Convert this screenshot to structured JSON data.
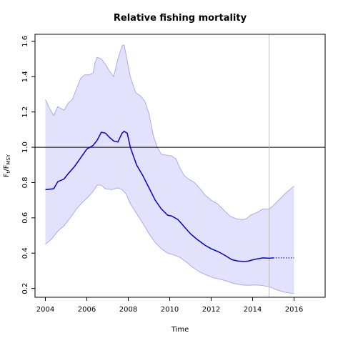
{
  "chart_data": {
    "type": "line",
    "title": "Relative fishing mortality",
    "xlabel": "Time",
    "ylabel_main": "F",
    "ylabel_sub1": "t",
    "ylabel_sep": "/F",
    "ylabel_sub2": "MSY",
    "xlim": [
      2003.5,
      2017.5
    ],
    "ylim": [
      0.15,
      1.64
    ],
    "x_ticks": [
      2004,
      2006,
      2008,
      2010,
      2012,
      2014,
      2016
    ],
    "x_tick_labels": [
      "2004",
      "2006",
      "2008",
      "2010",
      "2012",
      "2014",
      "2016"
    ],
    "y_ticks": [
      0.2,
      0.4,
      0.6,
      0.8,
      1.0,
      1.2,
      1.4,
      1.6
    ],
    "y_tick_labels": [
      "0.2",
      "0.4",
      "0.6",
      "0.8",
      "1.0",
      "1.2",
      "1.4",
      "1.6"
    ],
    "reference_line_y": 1.0,
    "vertical_line_x": 2014.8,
    "grid": false,
    "colors": {
      "median": "#0000dd",
      "band_fill": "#e2e2fd",
      "band_edge": "#aaaaf0",
      "reference": "#000000",
      "vertical": "#bbbbbb"
    },
    "series": [
      {
        "role": "median",
        "x": [
          2004.0,
          2004.4,
          2004.6,
          2004.9,
          2005.1,
          2005.4,
          2005.7,
          2006.0,
          2006.3,
          2006.5,
          2006.7,
          2006.9,
          2007.1,
          2007.3,
          2007.5,
          2007.7,
          2007.8,
          2007.95,
          2008.1,
          2008.4,
          2008.7,
          2009.0,
          2009.3,
          2009.6,
          2009.9,
          2010.1,
          2010.4,
          2010.7,
          2011.0,
          2011.3,
          2011.7,
          2012.0,
          2012.4,
          2012.7,
          2013.0,
          2013.3,
          2013.6,
          2013.8,
          2014.0,
          2014.2,
          2014.5,
          2014.8,
          2015.0
        ],
        "y": [
          0.76,
          0.765,
          0.805,
          0.82,
          0.85,
          0.89,
          0.94,
          0.99,
          1.01,
          1.04,
          1.085,
          1.08,
          1.055,
          1.035,
          1.03,
          1.08,
          1.09,
          1.08,
          1.0,
          0.9,
          0.84,
          0.77,
          0.7,
          0.65,
          0.615,
          0.61,
          0.59,
          0.55,
          0.51,
          0.48,
          0.445,
          0.425,
          0.405,
          0.385,
          0.363,
          0.355,
          0.353,
          0.355,
          0.362,
          0.367,
          0.373,
          0.371,
          0.373
        ]
      },
      {
        "role": "projection",
        "x": [
          2015.0,
          2016.0
        ],
        "y": [
          0.373,
          0.373
        ]
      },
      {
        "role": "band_upper",
        "x": [
          2004.0,
          2004.2,
          2004.4,
          2004.6,
          2004.9,
          2005.1,
          2005.3,
          2005.5,
          2005.7,
          2005.9,
          2006.1,
          2006.3,
          2006.4,
          2006.5,
          2006.7,
          2006.9,
          2007.1,
          2007.3,
          2007.5,
          2007.7,
          2007.8,
          2007.9,
          2008.1,
          2008.35,
          2008.6,
          2008.8,
          2009.0,
          2009.2,
          2009.4,
          2009.6,
          2009.9,
          2010.1,
          2010.3,
          2010.5,
          2010.7,
          2010.9,
          2011.2,
          2011.5,
          2011.7,
          2012.0,
          2012.3,
          2012.6,
          2012.9,
          2013.2,
          2013.5,
          2013.7,
          2013.9,
          2014.2,
          2014.5,
          2014.8,
          2015.0,
          2015.3,
          2015.6,
          2016.0
        ],
        "y": [
          1.27,
          1.22,
          1.18,
          1.23,
          1.21,
          1.25,
          1.27,
          1.33,
          1.39,
          1.41,
          1.41,
          1.42,
          1.48,
          1.51,
          1.5,
          1.47,
          1.43,
          1.4,
          1.5,
          1.575,
          1.58,
          1.52,
          1.4,
          1.31,
          1.29,
          1.26,
          1.19,
          1.07,
          1.0,
          0.96,
          0.955,
          0.95,
          0.935,
          0.88,
          0.84,
          0.82,
          0.8,
          0.76,
          0.73,
          0.7,
          0.68,
          0.645,
          0.61,
          0.595,
          0.59,
          0.595,
          0.615,
          0.63,
          0.65,
          0.65,
          0.67,
          0.705,
          0.74,
          0.78
        ]
      },
      {
        "role": "band_lower",
        "x": [
          2004.0,
          2004.3,
          2004.6,
          2004.9,
          2005.2,
          2005.5,
          2005.8,
          2006.0,
          2006.3,
          2006.5,
          2006.7,
          2006.9,
          2007.2,
          2007.5,
          2007.7,
          2007.9,
          2008.1,
          2008.4,
          2008.7,
          2009.0,
          2009.3,
          2009.6,
          2009.9,
          2010.2,
          2010.5,
          2010.8,
          2011.1,
          2011.5,
          2011.8,
          2012.1,
          2012.5,
          2012.8,
          2013.1,
          2013.5,
          2013.8,
          2014.1,
          2014.4,
          2014.8,
          2015.1,
          2015.5,
          2016.0
        ],
        "y": [
          0.45,
          0.48,
          0.525,
          0.555,
          0.6,
          0.65,
          0.69,
          0.71,
          0.75,
          0.785,
          0.785,
          0.765,
          0.76,
          0.77,
          0.76,
          0.735,
          0.68,
          0.625,
          0.57,
          0.51,
          0.46,
          0.425,
          0.4,
          0.39,
          0.375,
          0.35,
          0.32,
          0.29,
          0.275,
          0.26,
          0.25,
          0.24,
          0.228,
          0.22,
          0.218,
          0.22,
          0.218,
          0.21,
          0.195,
          0.18,
          0.17
        ]
      }
    ]
  }
}
